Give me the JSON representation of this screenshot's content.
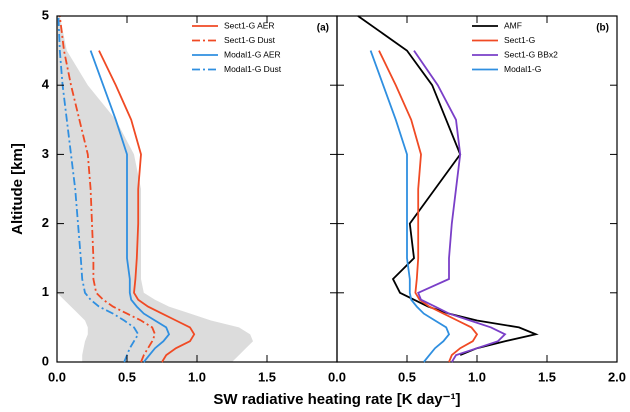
{
  "chart_data": [
    {
      "type": "line",
      "label": "(a)",
      "ylabel": "Altitude [km]",
      "xlabel": "SW radiative heating rate [K day⁻¹]",
      "xlim": [
        0,
        2
      ],
      "xticks": [
        {
          "value": 0,
          "label": "0.0"
        },
        {
          "value": 0.5,
          "label": "0.5"
        },
        {
          "value": 1,
          "label": "1.0"
        },
        {
          "value": 1.5,
          "label": "1.5"
        }
      ],
      "ylim": [
        0,
        5
      ],
      "yticks": [
        0,
        1,
        2,
        3,
        4,
        5
      ],
      "legend": "upper right",
      "y": [
        0,
        0.1,
        0.2,
        0.3,
        0.4,
        0.5,
        0.6,
        0.7,
        0.8,
        0.9,
        1,
        1.2,
        1.5,
        2,
        2.5,
        3,
        3.5,
        4,
        4.5,
        5
      ],
      "band": {
        "color": "#dcdcdc",
        "lower": [
          0.18,
          0.18,
          0.19,
          0.2,
          0.22,
          0.22,
          0.2,
          0.15,
          0.1,
          0.05,
          0,
          0,
          0,
          0,
          0,
          0,
          0,
          0,
          0,
          0
        ],
        "upper": [
          1.25,
          1.3,
          1.35,
          1.4,
          1.38,
          1.3,
          1.1,
          0.95,
          0.8,
          0.7,
          0.62,
          0.6,
          0.6,
          0.6,
          0.6,
          0.55,
          0.42,
          0.22,
          0.07,
          0.02
        ]
      },
      "series": [
        {
          "name": "Sect1-G AER",
          "color": "#f04a24",
          "dash": "solid",
          "values": [
            0.75,
            0.78,
            0.85,
            0.95,
            0.98,
            0.95,
            0.85,
            0.75,
            0.65,
            0.58,
            0.55,
            0.56,
            0.57,
            0.58,
            0.58,
            0.6,
            0.53,
            0.42,
            0.3,
            null
          ]
        },
        {
          "name": "Sect1-G Dust",
          "color": "#f04a24",
          "dash": "dashdot",
          "values": [
            0.6,
            0.62,
            0.65,
            0.68,
            0.7,
            0.68,
            0.6,
            0.5,
            0.4,
            0.33,
            0.28,
            0.26,
            0.26,
            0.25,
            0.24,
            0.22,
            0.16,
            0.1,
            0.05,
            0.02
          ]
        },
        {
          "name": "Modal1-G AER",
          "color": "#2f8fe0",
          "dash": "solid",
          "values": [
            0.62,
            0.66,
            0.7,
            0.76,
            0.8,
            0.78,
            0.7,
            0.62,
            0.57,
            0.53,
            0.52,
            0.52,
            0.5,
            0.5,
            0.5,
            0.5,
            0.42,
            0.33,
            0.24,
            null
          ]
        },
        {
          "name": "Modal1-G Dust",
          "color": "#2f8fe0",
          "dash": "dashdot",
          "values": [
            0.48,
            0.5,
            0.52,
            0.55,
            0.58,
            0.55,
            0.48,
            0.4,
            0.3,
            0.24,
            0.2,
            0.18,
            0.17,
            0.15,
            0.13,
            0.1,
            0.07,
            0.04,
            0.02,
            0.01
          ]
        }
      ]
    },
    {
      "type": "line",
      "label": "(b)",
      "xlim": [
        0,
        2
      ],
      "xticks": [
        {
          "value": 0,
          "label": "0.0"
        },
        {
          "value": 0.5,
          "label": "0.5"
        },
        {
          "value": 1,
          "label": "1.0"
        },
        {
          "value": 1.5,
          "label": "1.5"
        },
        {
          "value": 2,
          "label": "2.0"
        }
      ],
      "ylim": [
        0,
        5
      ],
      "legend": "upper right",
      "y": [
        0,
        0.1,
        0.2,
        0.3,
        0.4,
        0.5,
        0.6,
        0.7,
        0.8,
        0.9,
        1,
        1.2,
        1.5,
        2,
        2.5,
        3,
        3.5,
        4,
        4.5,
        5
      ],
      "series": [
        {
          "name": "AMF",
          "color": "#000000",
          "dash": "solid",
          "values": [
            null,
            0.88,
            1.0,
            1.2,
            1.42,
            1.3,
            1.0,
            0.8,
            0.65,
            0.55,
            0.45,
            0.4,
            0.55,
            0.52,
            0.7,
            0.88,
            0.78,
            0.68,
            0.5,
            0.15
          ]
        },
        {
          "name": "Sect1-G",
          "color": "#f04a24",
          "dash": "solid",
          "values": [
            0.8,
            0.82,
            0.88,
            0.97,
            1.0,
            0.96,
            0.86,
            0.76,
            0.66,
            0.59,
            0.56,
            0.57,
            0.58,
            0.58,
            0.58,
            0.6,
            0.53,
            0.42,
            0.3,
            null
          ]
        },
        {
          "name": "Sect1-G BBx2",
          "color": "#7a3fc8",
          "dash": "solid",
          "values": [
            0.82,
            0.85,
            1.0,
            1.15,
            1.2,
            1.1,
            0.95,
            0.8,
            0.7,
            0.6,
            0.58,
            0.8,
            0.8,
            0.82,
            0.85,
            0.88,
            0.85,
            0.72,
            0.55,
            null
          ]
        },
        {
          "name": "Modal1-G",
          "color": "#2f8fe0",
          "dash": "solid",
          "values": [
            0.62,
            0.66,
            0.7,
            0.76,
            0.8,
            0.78,
            0.7,
            0.62,
            0.57,
            0.53,
            0.52,
            0.52,
            0.5,
            0.5,
            0.5,
            0.5,
            0.42,
            0.33,
            0.24,
            null
          ]
        }
      ]
    }
  ]
}
